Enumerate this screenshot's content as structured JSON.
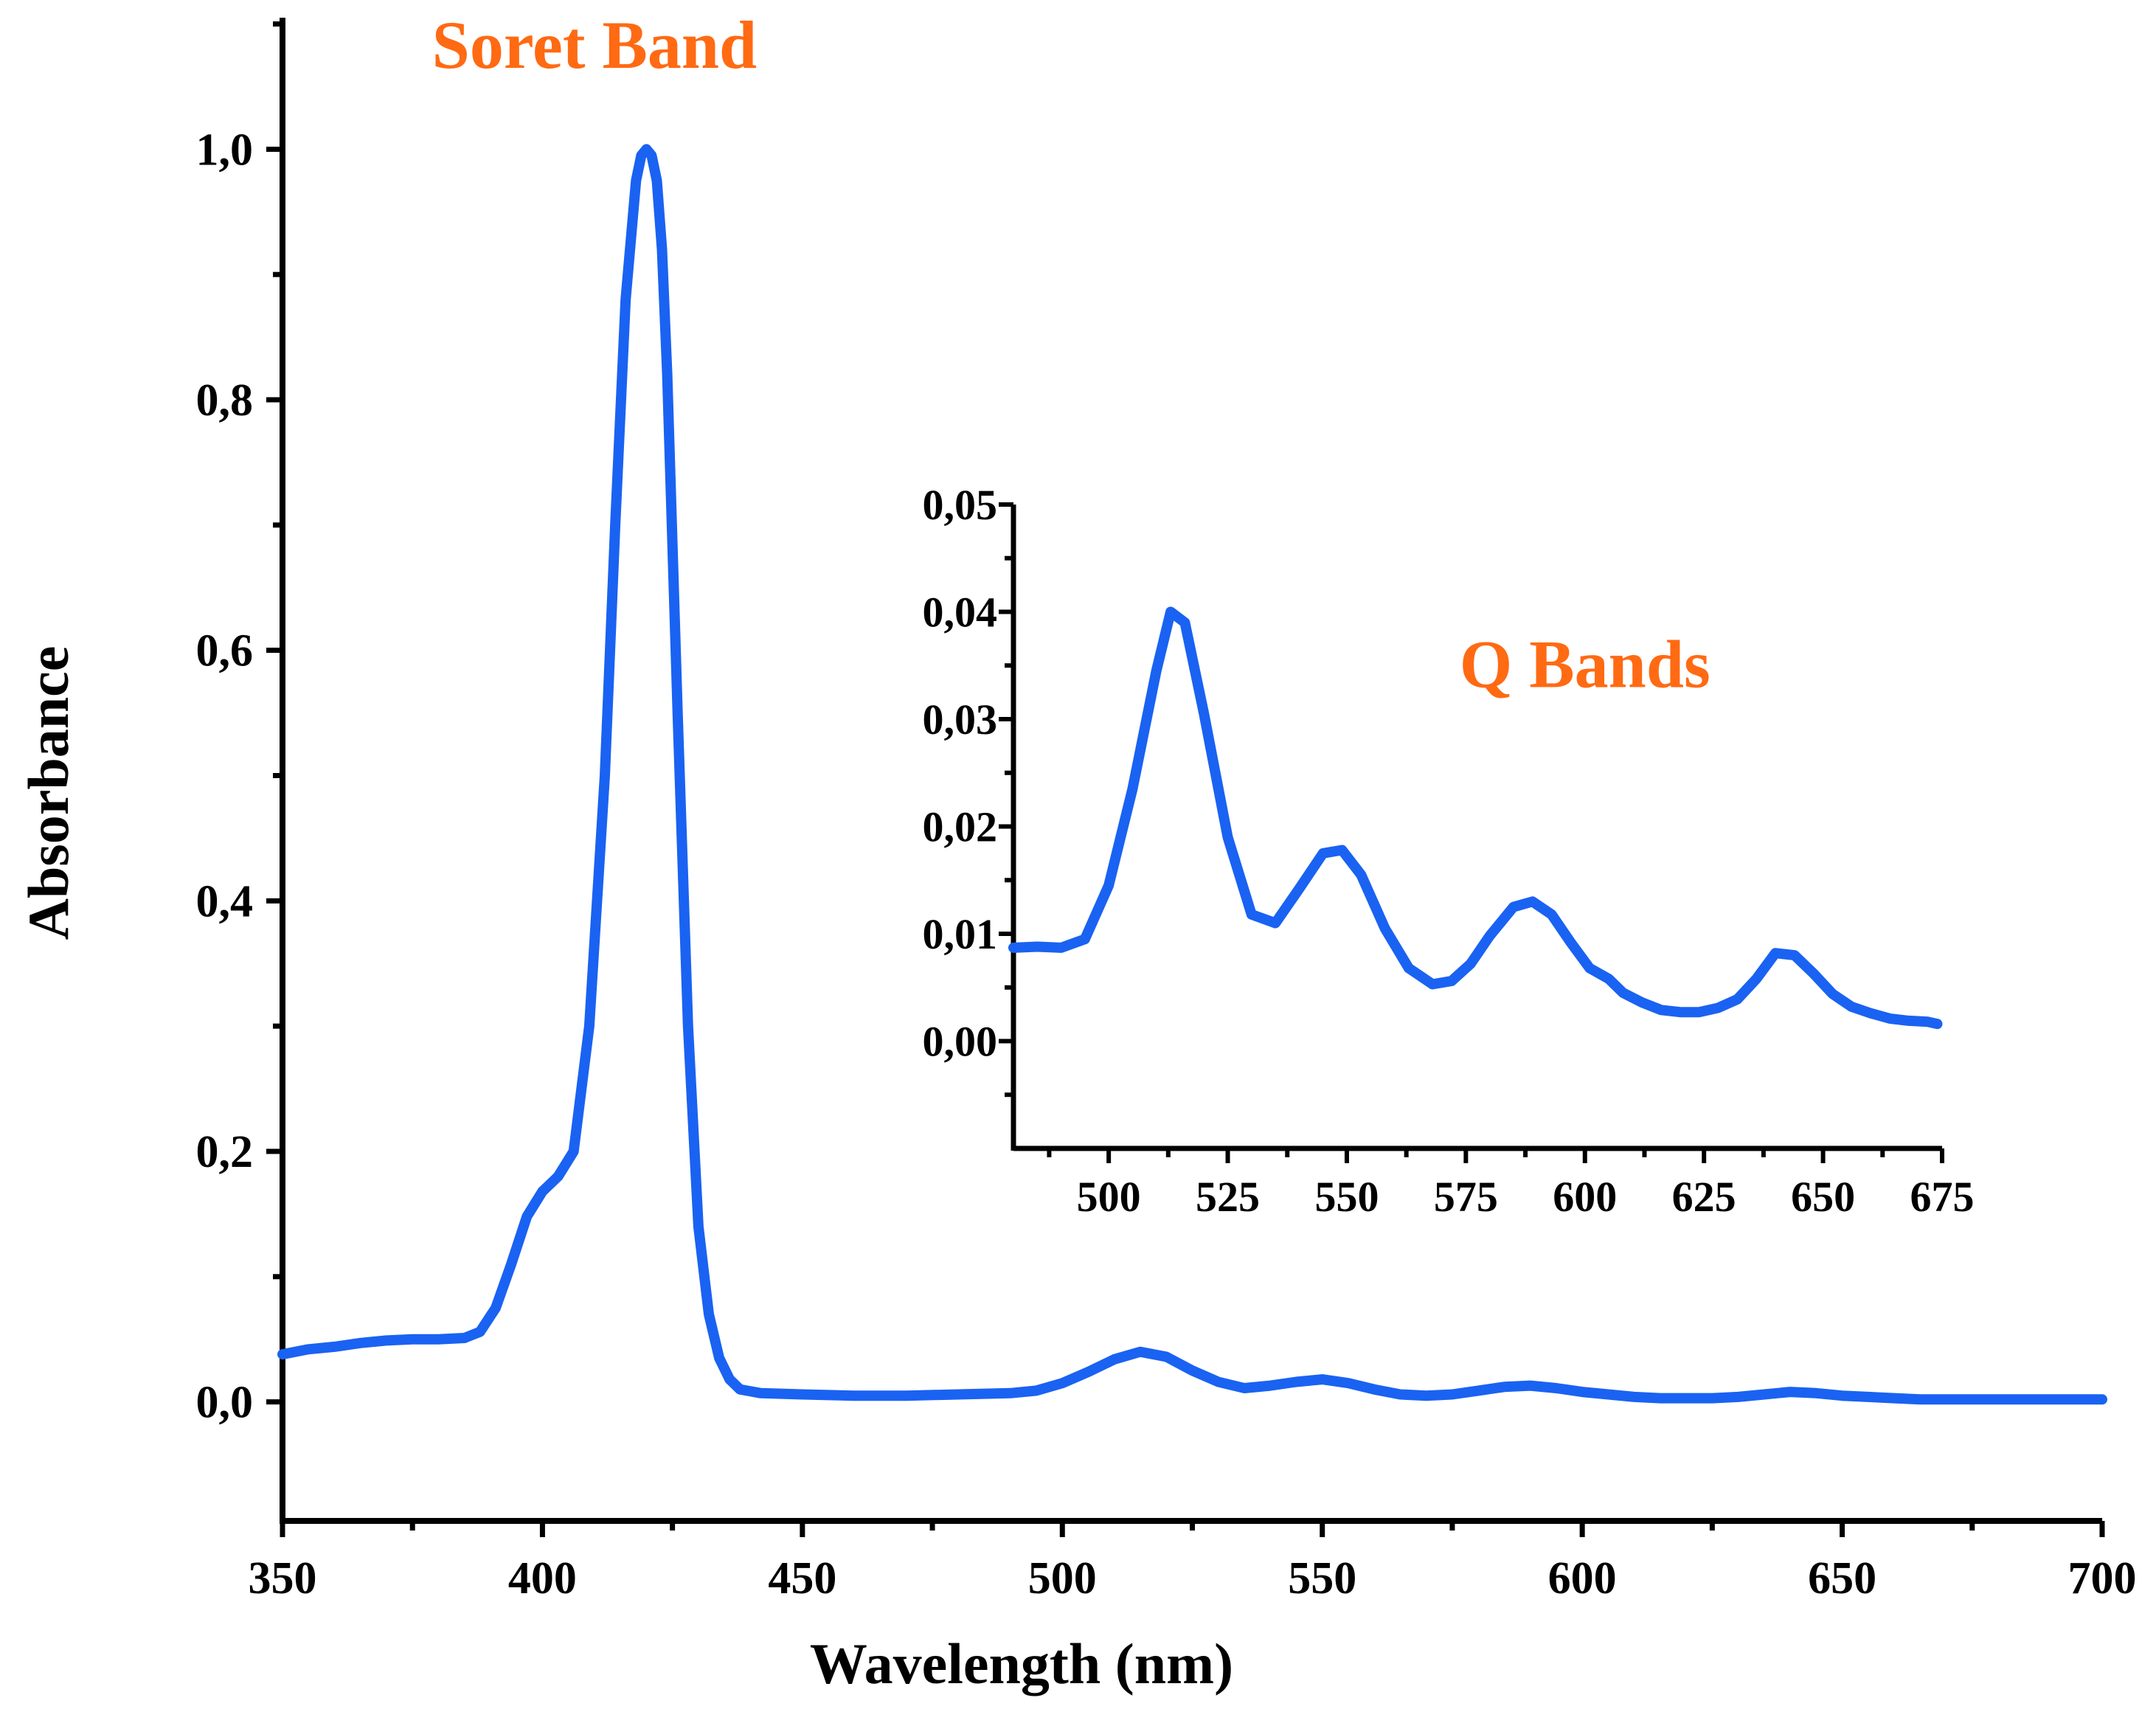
{
  "chart_data": [
    {
      "type": "line",
      "role": "main",
      "xlabel": "Wavelength (nm)",
      "ylabel": "Absorbance",
      "xlim": [
        350,
        700
      ],
      "ylim": [
        -0.095,
        1.105
      ],
      "xticks": [
        350,
        400,
        450,
        500,
        550,
        600,
        650,
        700
      ],
      "xtick_labels": [
        "350",
        "400",
        "450",
        "500",
        "550",
        "600",
        "650",
        "700"
      ],
      "yticks": [
        0.0,
        0.2,
        0.4,
        0.6,
        0.8,
        1.0
      ],
      "ytick_labels": [
        "0,0",
        "0,2",
        "0,4",
        "0,6",
        "0,8",
        "1,0"
      ],
      "annotation": {
        "text": "Soret Band",
        "x": 410,
        "y": 1.065
      },
      "series": [
        {
          "name": "Absorbance",
          "color": "#1a62f2",
          "x": [
            350,
            355,
            360,
            365,
            370,
            375,
            380,
            385,
            388,
            391,
            394,
            397,
            400,
            403,
            406,
            409,
            412,
            414,
            416,
            418,
            419,
            420,
            421,
            422,
            423,
            424,
            426,
            428,
            430,
            432,
            434,
            436,
            438,
            442,
            450,
            460,
            470,
            480,
            490,
            495,
            500,
            505,
            510,
            515,
            520,
            525,
            530,
            535,
            540,
            545,
            550,
            555,
            560,
            565,
            570,
            575,
            580,
            585,
            590,
            595,
            600,
            605,
            610,
            615,
            620,
            625,
            630,
            635,
            640,
            645,
            650,
            655,
            660,
            665,
            670,
            675,
            680,
            690,
            700
          ],
          "y": [
            0.038,
            0.042,
            0.044,
            0.047,
            0.049,
            0.05,
            0.05,
            0.051,
            0.056,
            0.075,
            0.11,
            0.148,
            0.168,
            0.18,
            0.2,
            0.3,
            0.5,
            0.7,
            0.88,
            0.975,
            0.995,
            1.0,
            0.995,
            0.975,
            0.92,
            0.82,
            0.55,
            0.3,
            0.14,
            0.07,
            0.035,
            0.018,
            0.01,
            0.007,
            0.006,
            0.005,
            0.005,
            0.006,
            0.007,
            0.009,
            0.015,
            0.024,
            0.034,
            0.04,
            0.036,
            0.025,
            0.016,
            0.011,
            0.013,
            0.016,
            0.018,
            0.015,
            0.01,
            0.006,
            0.005,
            0.006,
            0.009,
            0.012,
            0.013,
            0.011,
            0.008,
            0.006,
            0.004,
            0.003,
            0.003,
            0.003,
            0.004,
            0.006,
            0.008,
            0.007,
            0.005,
            0.004,
            0.003,
            0.002,
            0.002,
            0.002,
            0.002,
            0.002,
            0.002
          ]
        }
      ]
    },
    {
      "type": "line",
      "role": "inset",
      "title": "Q Bands",
      "xlim": [
        480,
        675
      ],
      "ylim": [
        -0.01,
        0.05
      ],
      "xticks": [
        500,
        525,
        550,
        575,
        600,
        625,
        650,
        675
      ],
      "xtick_labels": [
        "500",
        "525",
        "550",
        "575",
        "600",
        "625",
        "650",
        "675"
      ],
      "yticks": [
        0.0,
        0.01,
        0.02,
        0.03,
        0.04,
        0.05
      ],
      "ytick_labels": [
        "0,00",
        "0,01",
        "0,02",
        "0,03",
        "0,04",
        "0,05"
      ],
      "annotation": {
        "text": "Q Bands",
        "x": 600,
        "y": 0.033
      },
      "series": [
        {
          "name": "Absorbance (Q bands)",
          "color": "#1a62f2",
          "x": [
            480,
            485,
            490,
            495,
            500,
            505,
            510,
            513,
            516,
            520,
            525,
            530,
            535,
            540,
            545,
            549,
            553,
            558,
            563,
            568,
            572,
            576,
            580,
            585,
            589,
            593,
            597,
            601,
            605,
            608,
            612,
            616,
            620,
            624,
            628,
            632,
            636,
            640,
            644,
            648,
            652,
            656,
            660,
            664,
            668,
            672,
            674
          ],
          "y": [
            0.0087,
            0.0088,
            0.0087,
            0.0095,
            0.0145,
            0.0235,
            0.0345,
            0.04,
            0.039,
            0.0305,
            0.019,
            0.0118,
            0.011,
            0.0142,
            0.0175,
            0.0178,
            0.0155,
            0.0105,
            0.0068,
            0.0053,
            0.0056,
            0.0072,
            0.0098,
            0.0125,
            0.013,
            0.0118,
            0.0092,
            0.0068,
            0.0058,
            0.0045,
            0.0036,
            0.0029,
            0.0027,
            0.0027,
            0.0031,
            0.0039,
            0.0058,
            0.0082,
            0.008,
            0.0063,
            0.0044,
            0.0032,
            0.0026,
            0.0021,
            0.0019,
            0.0018,
            0.0016
          ]
        }
      ]
    }
  ]
}
